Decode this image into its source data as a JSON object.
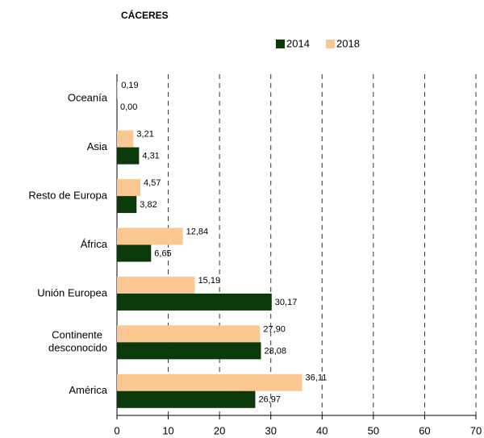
{
  "chart_data": {
    "type": "hbar",
    "title": "CÁCERES",
    "categories": [
      "Oceanía",
      "Asia",
      "Resto de Europa",
      "África",
      "Unión Europea",
      "Continente desconocido",
      "América"
    ],
    "series": [
      {
        "name": "2014",
        "color": "#0a3a0a",
        "values": [
          0,
          4.31,
          3.82,
          6.65,
          30.17,
          28.08,
          26.97
        ],
        "value_labels": [
          "0,00",
          "4,31",
          "3,82",
          "6,65",
          "30,17",
          "28,08",
          "26,97"
        ]
      },
      {
        "name": "2018",
        "color": "#fbc893",
        "values": [
          0.19,
          3.21,
          4.57,
          12.84,
          15.19,
          27.9,
          36.11
        ],
        "value_labels": [
          "0,19",
          "3,21",
          "4,57",
          "12,84",
          "15,19",
          "27,90",
          "36,11"
        ]
      }
    ],
    "xlim": [
      0,
      70
    ],
    "xticks": [
      0,
      10,
      20,
      30,
      40,
      50,
      60,
      70
    ],
    "grid": true,
    "legend": "top"
  }
}
